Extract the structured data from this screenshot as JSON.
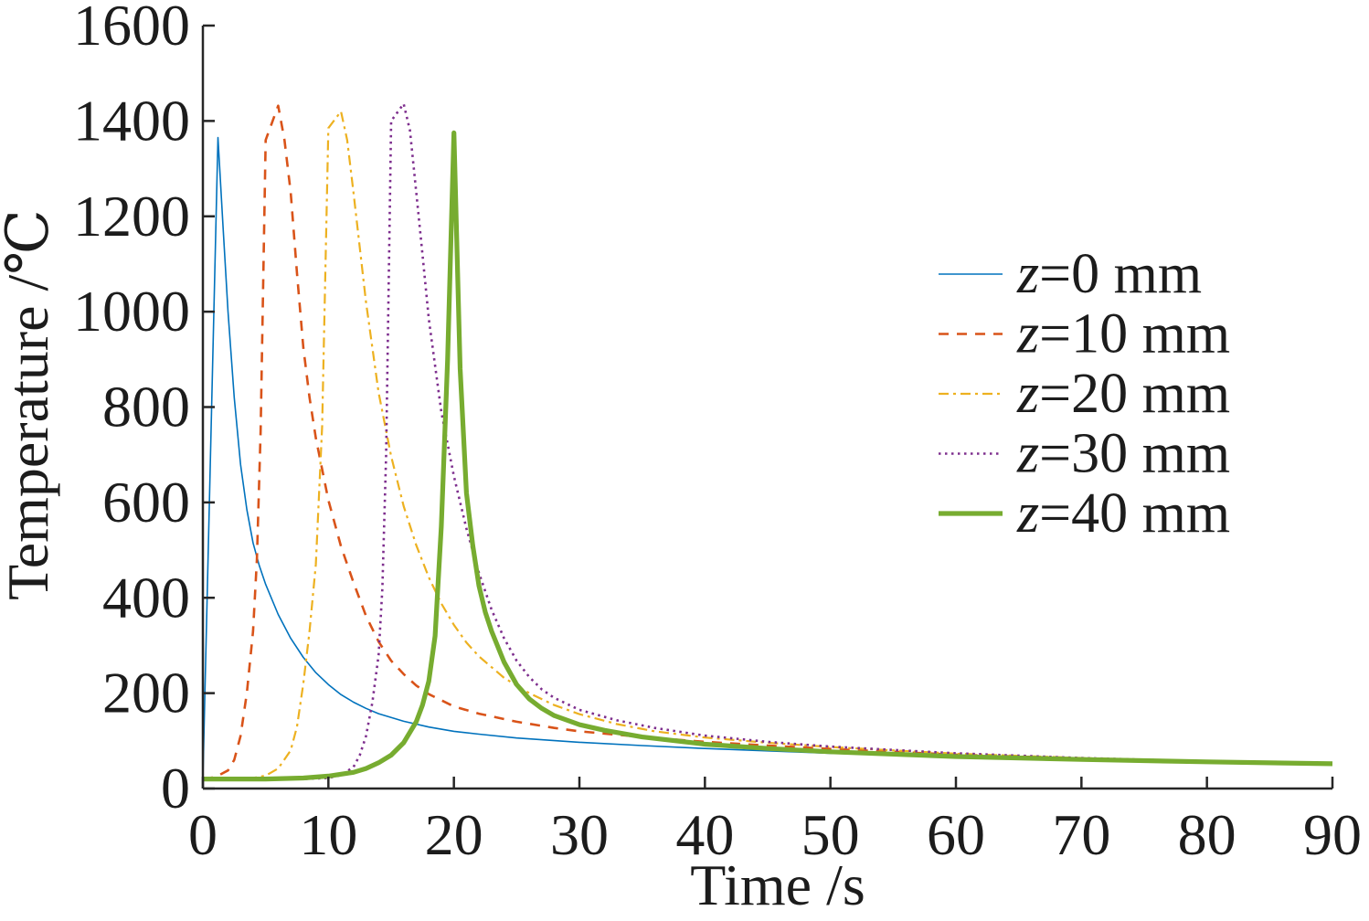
{
  "chart_data": {
    "type": "line",
    "title": "",
    "xlabel": "Time /s",
    "ylabel": "Temperature /℃",
    "xlim": [
      0,
      90
    ],
    "ylim": [
      0,
      1600
    ],
    "xticks": [
      0,
      10,
      20,
      30,
      40,
      50,
      60,
      70,
      80,
      90
    ],
    "yticks": [
      0,
      200,
      400,
      600,
      800,
      1000,
      1200,
      1400,
      1600
    ],
    "grid": false,
    "legend_position": "right",
    "series": [
      {
        "name": "z=0 mm",
        "color": "#0072BD",
        "line_style": "solid",
        "x": [
          0,
          1.2,
          1.6,
          2,
          2.5,
          3,
          3.5,
          4,
          4.5,
          5,
          6,
          7,
          8,
          9,
          10,
          11,
          12,
          13,
          14,
          16,
          18,
          20,
          22,
          25,
          30,
          35,
          40,
          45,
          50,
          60,
          70,
          80,
          90
        ],
        "y": [
          20,
          1365,
          1180,
          1000,
          820,
          680,
          585,
          515,
          467,
          428,
          365,
          315,
          275,
          243,
          218,
          197,
          181,
          168,
          157,
          141,
          129,
          120,
          114,
          106,
          97,
          90,
          84,
          79,
          74,
          67,
          61,
          56,
          52
        ]
      },
      {
        "name": "z=10 mm",
        "color": "#D95319",
        "line_style": "dashed",
        "x": [
          0,
          1,
          2,
          2.5,
          3,
          3.5,
          4,
          4.3,
          4.6,
          5,
          6,
          6.5,
          7,
          7.5,
          8,
          8.5,
          9,
          10,
          11,
          12,
          13,
          14,
          15,
          16,
          17,
          18,
          20,
          22,
          25,
          28,
          30,
          35,
          40,
          45,
          50,
          60,
          70,
          80,
          90
        ],
        "y": [
          20,
          24,
          38,
          60,
          110,
          200,
          330,
          480,
          750,
          1360,
          1432,
          1360,
          1250,
          1080,
          925,
          820,
          735,
          605,
          508,
          432,
          362,
          308,
          268,
          240,
          216,
          198,
          172,
          157,
          140,
          127,
          120,
          108,
          98,
          90,
          83,
          71,
          63,
          57,
          52
        ]
      },
      {
        "name": "z=20 mm",
        "color": "#EDB120",
        "line_style": "dash-dot",
        "x": [
          0,
          3,
          4,
          5,
          6,
          7,
          7.5,
          8,
          8.5,
          9,
          9.5,
          10,
          11,
          11.5,
          12,
          13,
          14,
          15,
          16,
          17,
          18,
          19,
          20,
          21,
          22,
          24,
          26,
          28,
          30,
          33,
          36,
          40,
          45,
          50,
          60,
          70,
          80,
          90
        ],
        "y": [
          20,
          20,
          22,
          27,
          42,
          80,
          130,
          220,
          330,
          470,
          760,
          1385,
          1420,
          1360,
          1250,
          1020,
          830,
          697,
          592,
          510,
          443,
          388,
          343,
          306,
          277,
          232,
          200,
          175,
          156,
          135,
          120,
          107,
          96,
          87,
          73,
          64,
          57,
          52
        ]
      },
      {
        "name": "z=30 mm",
        "color": "#7E2F8E",
        "line_style": "dotted",
        "x": [
          0,
          8,
          10,
          11,
          12,
          12.5,
          13,
          13.5,
          14,
          14.3,
          14.6,
          15,
          16,
          16.5,
          17,
          17.5,
          18,
          19,
          20,
          21,
          22,
          23,
          24,
          25,
          26,
          27,
          28,
          30,
          33,
          36,
          40,
          45,
          50,
          60,
          70,
          80,
          90
        ],
        "y": [
          20,
          20,
          22,
          28,
          45,
          70,
          110,
          180,
          280,
          420,
          700,
          1400,
          1436,
          1380,
          1250,
          1120,
          985,
          790,
          655,
          545,
          452,
          375,
          315,
          268,
          234,
          208,
          190,
          165,
          143,
          127,
          111,
          98,
          88,
          74,
          64,
          57,
          52
        ]
      },
      {
        "name": "z=40 mm",
        "color": "#77AC30",
        "line_style": "solid",
        "x": [
          0,
          5,
          8,
          10,
          12,
          13,
          14,
          15,
          16,
          17,
          17.5,
          18,
          18.5,
          19,
          19.5,
          20,
          20.5,
          21,
          21.5,
          22,
          22.5,
          23,
          24,
          25,
          26,
          27,
          28,
          30,
          32,
          35,
          40,
          45,
          50,
          60,
          70,
          80,
          90
        ],
        "y": [
          20,
          20,
          22,
          26,
          34,
          42,
          54,
          70,
          96,
          140,
          175,
          225,
          320,
          550,
          900,
          1375,
          880,
          620,
          510,
          425,
          370,
          330,
          265,
          218,
          188,
          168,
          153,
          134,
          122,
          108,
          93,
          84,
          77,
          67,
          61,
          56,
          52
        ]
      }
    ]
  }
}
